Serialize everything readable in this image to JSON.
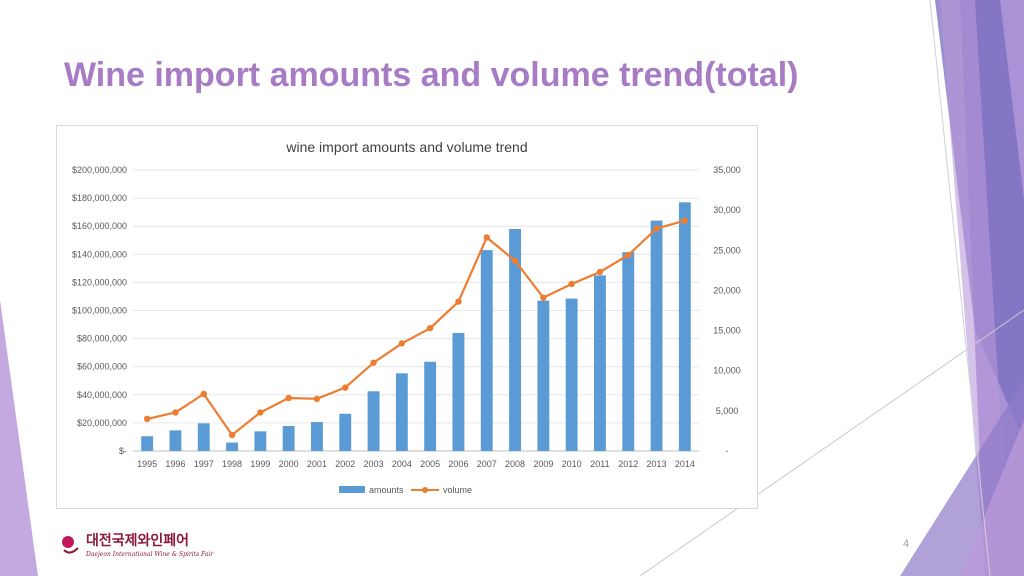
{
  "slide": {
    "title": "Wine import amounts and volume trend(total)",
    "page_number": "4"
  },
  "logo": {
    "main_text": "대전국제와인페어",
    "sub_text": "Daejeon International Wine & Spirits Fair",
    "colors": {
      "primary": "#8b1a3a",
      "accent": "#c2185b"
    }
  },
  "theme": {
    "title_color": "#a77cc5",
    "bar_color": "#5b9bd5",
    "line_color": "#ed7d31",
    "deco_colors": [
      "#7a6bbf",
      "#9a7fcf",
      "#b99ad9",
      "#d6c4ea"
    ]
  },
  "chart_data": {
    "type": "bar",
    "title": "wine import amounts and volume trend",
    "categories": [
      "1995",
      "1996",
      "1997",
      "1998",
      "1999",
      "2000",
      "2001",
      "2002",
      "2003",
      "2004",
      "2005",
      "2006",
      "2007",
      "2008",
      "2009",
      "2010",
      "2011",
      "2012",
      "2013",
      "2014"
    ],
    "series": [
      {
        "name": "amounts",
        "type": "bar",
        "axis": "left",
        "values": [
          10500000,
          14700000,
          19700000,
          6000000,
          14000000,
          17800000,
          20600000,
          26500000,
          42500000,
          55300000,
          63500000,
          84000000,
          143000000,
          158000000,
          107000000,
          108500000,
          125000000,
          141500000,
          164000000,
          177000000
        ]
      },
      {
        "name": "volume",
        "type": "line",
        "axis": "right",
        "values": [
          4000,
          4800,
          7100,
          2000,
          4800,
          6600,
          6500,
          7900,
          11000,
          13400,
          15300,
          18600,
          26600,
          23700,
          19100,
          20800,
          22300,
          24400,
          27700,
          28700
        ]
      }
    ],
    "y_left": {
      "min": 0,
      "max": 200000000,
      "tick_labels": [
        "$-",
        "$20,000,000",
        "$40,000,000",
        "$60,000,000",
        "$80,000,000",
        "$100,000,000",
        "$120,000,000",
        "$140,000,000",
        "$160,000,000",
        "$180,000,000",
        "$200,000,000"
      ]
    },
    "y_right": {
      "min": 0,
      "max": 35000,
      "tick_labels": [
        "-",
        "5,000",
        "10,000",
        "15,000",
        "20,000",
        "25,000",
        "30,000",
        "35,000"
      ]
    },
    "grid": true,
    "legend_position": "bottom"
  }
}
